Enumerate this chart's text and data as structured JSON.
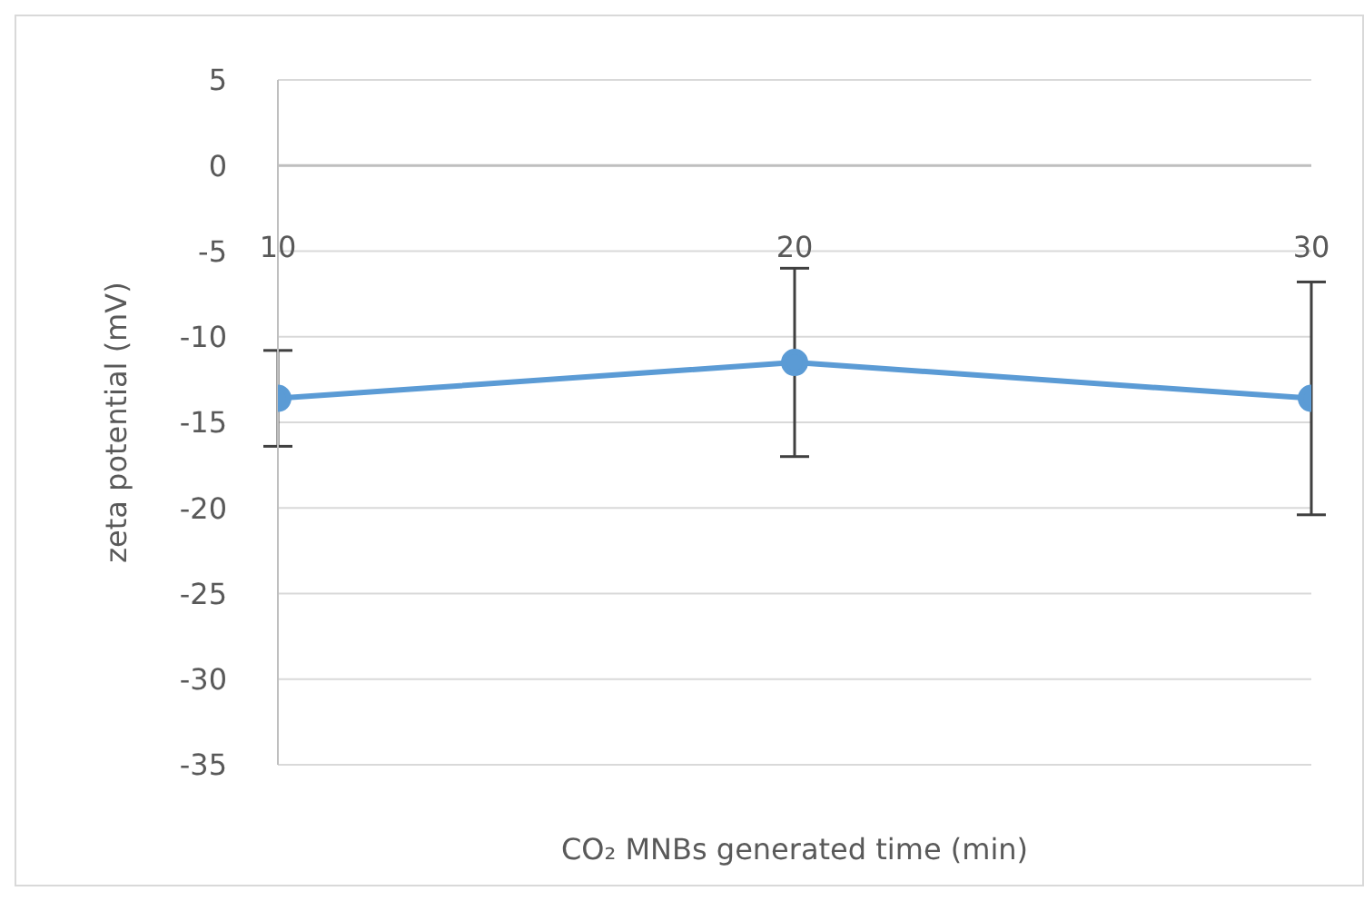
{
  "chart_data": {
    "type": "line",
    "xlabel": "CO₂ MNBs generated time (min)",
    "ylabel": "zeta potential (mV)",
    "x": [
      10,
      20,
      30
    ],
    "xlim": [
      10,
      30
    ],
    "xticks": [
      10,
      20,
      30
    ],
    "ylim": [
      -35,
      5
    ],
    "yticks": [
      -35,
      -30,
      -25,
      -20,
      -15,
      -10,
      -5,
      0,
      5
    ],
    "series": [
      {
        "color": "#5b9bd5",
        "values": [
          -13.6,
          -11.5,
          -13.6
        ],
        "errors": [
          2.8,
          5.5,
          6.8
        ]
      }
    ],
    "grid": "y",
    "marker": "circle"
  }
}
